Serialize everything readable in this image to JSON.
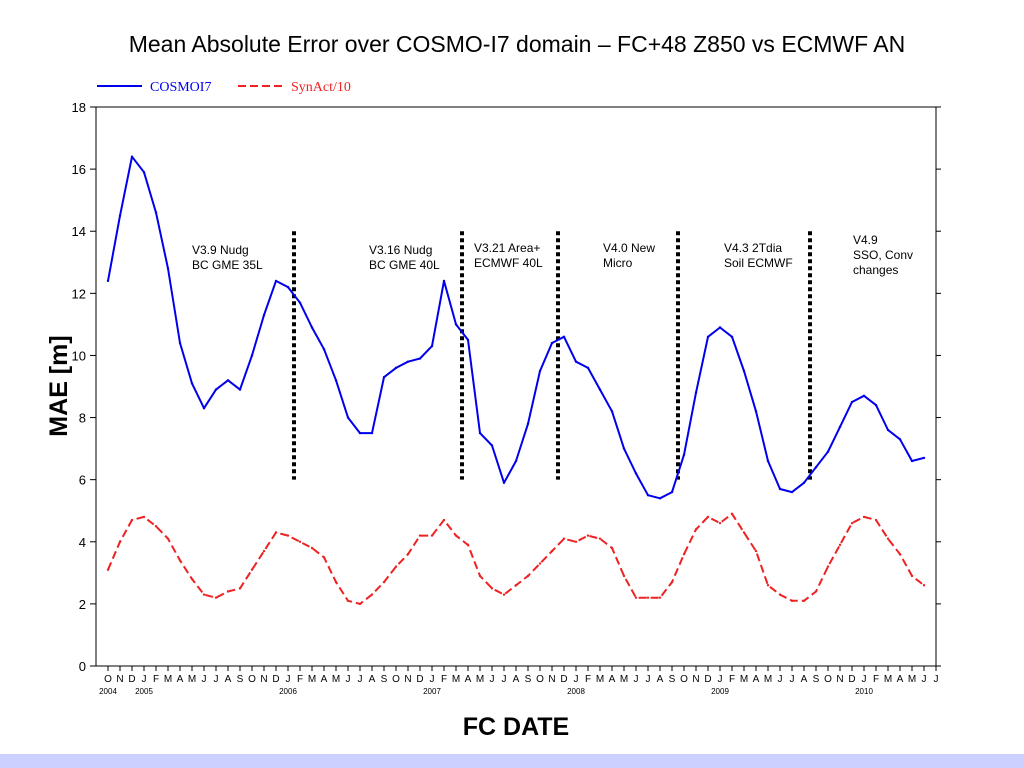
{
  "chart_data": {
    "type": "line",
    "title": "Mean Absolute Error over COSMO-I7 domain – FC+48 Z850 vs ECMWF AN",
    "xlabel": "FC DATE",
    "ylabel": "MAE [m]",
    "ylim": [
      0,
      18
    ],
    "yticks": [
      0,
      2,
      4,
      6,
      8,
      10,
      12,
      14,
      16,
      18
    ],
    "grid": false,
    "legend_position": "top-left",
    "month_labels": [
      "O",
      "N",
      "D",
      "J",
      "F",
      "M",
      "A",
      "M",
      "J",
      "J",
      "A",
      "S",
      "O",
      "N",
      "D",
      "J",
      "F",
      "M",
      "A",
      "M",
      "J",
      "J",
      "A",
      "S",
      "O",
      "N",
      "D",
      "J",
      "F",
      "M",
      "A",
      "M",
      "J",
      "J",
      "A",
      "S",
      "O",
      "N",
      "D",
      "J",
      "F",
      "M",
      "A",
      "M",
      "J",
      "J",
      "A",
      "S",
      "O",
      "N",
      "D",
      "J",
      "F",
      "M",
      "A",
      "M",
      "J",
      "J",
      "A",
      "S",
      "O",
      "N",
      "D",
      "J",
      "F",
      "M",
      "A",
      "M",
      "J",
      "J"
    ],
    "year_labels": [
      {
        "label": "2004",
        "month_index": 0
      },
      {
        "label": "2005",
        "month_index": 3
      },
      {
        "label": "2006",
        "month_index": 15
      },
      {
        "label": "2007",
        "month_index": 27
      },
      {
        "label": "2008",
        "month_index": 39
      },
      {
        "label": "2009",
        "month_index": 51
      },
      {
        "label": "2010",
        "month_index": 63
      }
    ],
    "series": [
      {
        "name": "COSMOI7",
        "color": "#0000ee",
        "dash": "solid",
        "values": [
          12.4,
          14.5,
          16.4,
          15.9,
          14.6,
          12.8,
          10.4,
          9.1,
          8.3,
          8.9,
          9.2,
          8.9,
          10.0,
          11.3,
          12.4,
          12.2,
          11.7,
          10.9,
          10.2,
          9.2,
          8.0,
          7.5,
          7.5,
          9.3,
          9.6,
          9.8,
          9.9,
          10.3,
          12.4,
          11.0,
          10.5,
          7.5,
          7.1,
          5.9,
          6.6,
          7.8,
          9.5,
          10.4,
          10.6,
          9.8,
          9.6,
          8.9,
          8.2,
          7.0,
          6.2,
          5.5,
          5.4,
          5.6,
          6.8,
          8.8,
          10.6,
          10.9,
          10.6,
          9.5,
          8.2,
          6.6,
          5.7,
          5.6,
          5.9,
          6.4,
          6.9,
          7.7,
          8.5,
          8.7,
          8.4,
          7.6,
          7.3,
          6.6,
          6.7
        ]
      },
      {
        "name": "SynAct/10",
        "color": "#ee2222",
        "dash": "dashed",
        "values": [
          3.1,
          4.0,
          4.7,
          4.8,
          4.5,
          4.1,
          3.4,
          2.8,
          2.3,
          2.2,
          2.4,
          2.5,
          3.1,
          3.7,
          4.3,
          4.2,
          4.0,
          3.8,
          3.5,
          2.7,
          2.1,
          2.0,
          2.3,
          2.7,
          3.2,
          3.6,
          4.2,
          4.2,
          4.7,
          4.2,
          3.9,
          2.9,
          2.5,
          2.3,
          2.6,
          2.9,
          3.3,
          3.7,
          4.1,
          4.0,
          4.2,
          4.1,
          3.8,
          2.9,
          2.2,
          2.2,
          2.2,
          2.7,
          3.6,
          4.4,
          4.8,
          4.6,
          4.9,
          4.3,
          3.7,
          2.6,
          2.3,
          2.1,
          2.1,
          2.4,
          3.2,
          3.9,
          4.6,
          4.8,
          4.7,
          4.1,
          3.6,
          2.9,
          2.6
        ]
      }
    ],
    "annotations": [
      {
        "month_index": 15.5,
        "lines": [
          "V3.9 Nudg",
          "BC GME 35L"
        ]
      },
      {
        "month_index": 29.5,
        "lines": [
          "V3.16 Nudg",
          "BC GME 40L"
        ]
      },
      {
        "month_index": 37.5,
        "lines": [
          "V3.21 Area+",
          "ECMWF 40L"
        ]
      },
      {
        "month_index": 47.5,
        "lines": [
          "V4.0 New",
          "Micro"
        ]
      },
      {
        "month_index": 58.5,
        "lines": [
          "V4.3 2Tdia",
          "Soil ECMWF"
        ]
      },
      {
        "month_index": null,
        "lines": [
          "V4.9",
          "SSO, Conv",
          "changes"
        ]
      }
    ]
  }
}
